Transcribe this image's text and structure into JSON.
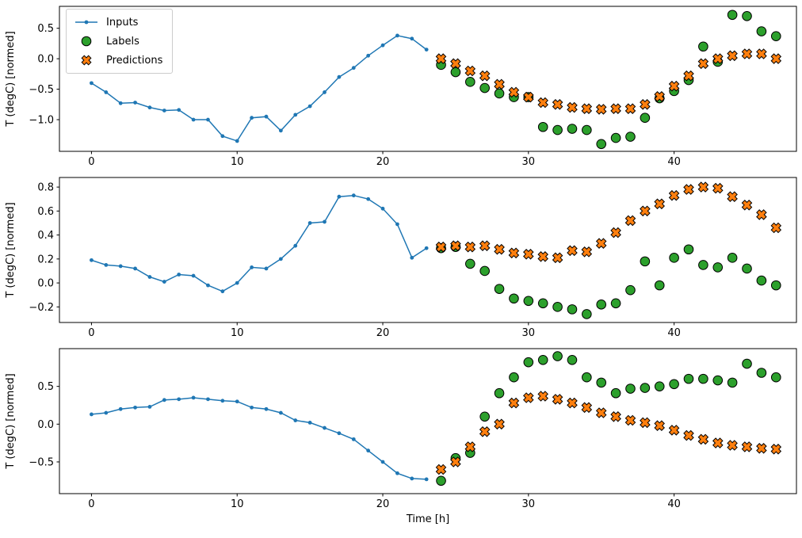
{
  "figure": {
    "xlabel": "Time [h]",
    "ylabel": "T (degC) [normed]",
    "background": "#ffffff"
  },
  "legend": {
    "items": [
      {
        "label": "Inputs"
      },
      {
        "label": "Labels"
      },
      {
        "label": "Predictions"
      }
    ]
  },
  "style": {
    "colors": {
      "inputs": "#1f77b4",
      "labels": "#2ca02c",
      "predictions": "#ff7f0e",
      "axis": "#000000"
    }
  },
  "chart_data": [
    {
      "type": "line",
      "ylabel": "T (degC) [normed]",
      "xlim": [
        -2.2,
        48.4
      ],
      "ylim": [
        -1.52,
        0.86
      ],
      "xticks": [
        0,
        10,
        20,
        30,
        40
      ],
      "yticks": [
        0.5,
        0.0,
        -0.5,
        -1.0
      ],
      "series": [
        {
          "name": "Inputs",
          "key": "inputs",
          "marker": "line-dot",
          "x": [
            0,
            1,
            2,
            3,
            4,
            5,
            6,
            7,
            8,
            9,
            10,
            11,
            12,
            13,
            14,
            15,
            16,
            17,
            18,
            19,
            20,
            21,
            22,
            23
          ],
          "y": [
            -0.4,
            -0.55,
            -0.73,
            -0.72,
            -0.8,
            -0.85,
            -0.84,
            -1.0,
            -1.0,
            -1.27,
            -1.35,
            -0.97,
            -0.95,
            -1.18,
            -0.92,
            -0.78,
            -0.55,
            -0.3,
            -0.15,
            0.05,
            0.22,
            0.38,
            0.33,
            0.15
          ]
        },
        {
          "name": "Labels",
          "key": "labels",
          "marker": "circle",
          "x": [
            24,
            25,
            26,
            27,
            28,
            29,
            30,
            31,
            32,
            33,
            34,
            35,
            36,
            37,
            38,
            39,
            40,
            41,
            42,
            43,
            44,
            45,
            46,
            47
          ],
          "y": [
            -0.1,
            -0.22,
            -0.38,
            -0.48,
            -0.57,
            -0.63,
            -0.63,
            -1.12,
            -1.17,
            -1.15,
            -1.17,
            -1.4,
            -1.3,
            -1.28,
            -0.97,
            -0.65,
            -0.53,
            -0.35,
            0.2,
            -0.05,
            0.72,
            0.7,
            0.45,
            0.37
          ]
        },
        {
          "name": "Predictions",
          "key": "predictions",
          "marker": "x",
          "x": [
            24,
            25,
            26,
            27,
            28,
            29,
            30,
            31,
            32,
            33,
            34,
            35,
            36,
            37,
            38,
            39,
            40,
            41,
            42,
            43,
            44,
            45,
            46,
            47
          ],
          "y": [
            0.0,
            -0.08,
            -0.2,
            -0.28,
            -0.42,
            -0.55,
            -0.63,
            -0.72,
            -0.75,
            -0.8,
            -0.82,
            -0.83,
            -0.82,
            -0.82,
            -0.75,
            -0.62,
            -0.45,
            -0.28,
            -0.08,
            0.0,
            0.05,
            0.08,
            0.08,
            0.0
          ]
        }
      ]
    },
    {
      "type": "line",
      "ylabel": "T (degC) [normed]",
      "xlim": [
        -2.2,
        48.4
      ],
      "ylim": [
        -0.33,
        0.88
      ],
      "xticks": [
        0,
        10,
        20,
        30,
        40
      ],
      "yticks": [
        0.8,
        0.6,
        0.4,
        0.2,
        0.0,
        -0.2
      ],
      "series": [
        {
          "name": "Inputs",
          "key": "inputs",
          "marker": "line-dot",
          "x": [
            0,
            1,
            2,
            3,
            4,
            5,
            6,
            7,
            8,
            9,
            10,
            11,
            12,
            13,
            14,
            15,
            16,
            17,
            18,
            19,
            20,
            21,
            22,
            23
          ],
          "y": [
            0.19,
            0.15,
            0.14,
            0.12,
            0.05,
            0.01,
            0.07,
            0.06,
            -0.02,
            -0.07,
            0.0,
            0.13,
            0.12,
            0.2,
            0.31,
            0.5,
            0.51,
            0.72,
            0.73,
            0.7,
            0.62,
            0.49,
            0.21,
            0.29
          ]
        },
        {
          "name": "Labels",
          "key": "labels",
          "marker": "circle",
          "x": [
            24,
            25,
            26,
            27,
            28,
            29,
            30,
            31,
            32,
            33,
            34,
            35,
            36,
            37,
            38,
            39,
            40,
            41,
            42,
            43,
            44,
            45,
            46,
            47
          ],
          "y": [
            0.29,
            0.3,
            0.16,
            0.1,
            -0.05,
            -0.13,
            -0.15,
            -0.17,
            -0.2,
            -0.22,
            -0.26,
            -0.18,
            -0.17,
            -0.06,
            0.18,
            -0.02,
            0.21,
            0.28,
            0.15,
            0.13,
            0.21,
            0.12,
            0.02,
            -0.02
          ]
        },
        {
          "name": "Predictions",
          "key": "predictions",
          "marker": "x",
          "x": [
            24,
            25,
            26,
            27,
            28,
            29,
            30,
            31,
            32,
            33,
            34,
            35,
            36,
            37,
            38,
            39,
            40,
            41,
            42,
            43,
            44,
            45,
            46,
            47
          ],
          "y": [
            0.3,
            0.31,
            0.3,
            0.31,
            0.28,
            0.25,
            0.24,
            0.22,
            0.21,
            0.27,
            0.26,
            0.33,
            0.42,
            0.52,
            0.6,
            0.66,
            0.73,
            0.78,
            0.8,
            0.79,
            0.72,
            0.65,
            0.57,
            0.46
          ]
        }
      ]
    },
    {
      "type": "line",
      "ylabel": "T (degC) [normed]",
      "xlim": [
        -2.2,
        48.4
      ],
      "ylim": [
        -0.92,
        1.0
      ],
      "xticks": [
        0,
        10,
        20,
        30,
        40
      ],
      "yticks": [
        0.5,
        0.0,
        -0.5
      ],
      "series": [
        {
          "name": "Inputs",
          "key": "inputs",
          "marker": "line-dot",
          "x": [
            0,
            1,
            2,
            3,
            4,
            5,
            6,
            7,
            8,
            9,
            10,
            11,
            12,
            13,
            14,
            15,
            16,
            17,
            18,
            19,
            20,
            21,
            22,
            23
          ],
          "y": [
            0.13,
            0.15,
            0.2,
            0.22,
            0.23,
            0.32,
            0.33,
            0.35,
            0.33,
            0.31,
            0.3,
            0.22,
            0.2,
            0.15,
            0.05,
            0.02,
            -0.05,
            -0.12,
            -0.2,
            -0.35,
            -0.5,
            -0.65,
            -0.72,
            -0.73
          ]
        },
        {
          "name": "Labels",
          "key": "labels",
          "marker": "circle",
          "x": [
            24,
            25,
            26,
            27,
            28,
            29,
            30,
            31,
            32,
            33,
            34,
            35,
            36,
            37,
            38,
            39,
            40,
            41,
            42,
            43,
            44,
            45,
            46,
            47
          ],
          "y": [
            -0.75,
            -0.45,
            -0.38,
            0.1,
            0.41,
            0.62,
            0.82,
            0.85,
            0.9,
            0.85,
            0.62,
            0.55,
            0.41,
            0.47,
            0.48,
            0.5,
            0.53,
            0.6,
            0.6,
            0.58,
            0.55,
            0.8,
            0.68,
            0.62
          ]
        },
        {
          "name": "Predictions",
          "key": "predictions",
          "marker": "x",
          "x": [
            24,
            25,
            26,
            27,
            28,
            29,
            30,
            31,
            32,
            33,
            34,
            35,
            36,
            37,
            38,
            39,
            40,
            41,
            42,
            43,
            44,
            45,
            46,
            47
          ],
          "y": [
            -0.6,
            -0.5,
            -0.3,
            -0.1,
            0.0,
            0.28,
            0.35,
            0.37,
            0.33,
            0.28,
            0.22,
            0.15,
            0.1,
            0.05,
            0.02,
            -0.02,
            -0.08,
            -0.15,
            -0.2,
            -0.25,
            -0.28,
            -0.3,
            -0.32,
            -0.33
          ]
        }
      ]
    }
  ]
}
